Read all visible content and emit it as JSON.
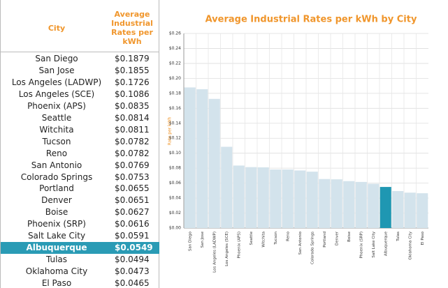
{
  "table": {
    "header": [
      "City",
      "Average Industrial Rates per kWh"
    ],
    "rows": [
      [
        "San Diego",
        "$0.1879"
      ],
      [
        "San Jose",
        "$0.1855"
      ],
      [
        "Los Angeles (LADWP)",
        "$0.1726"
      ],
      [
        "Los Angeles (SCE)",
        "$0.1086"
      ],
      [
        "Phoenix (APS)",
        "$0.0835"
      ],
      [
        "Seattle",
        "$0.0814"
      ],
      [
        "Witchita",
        "$0.0811"
      ],
      [
        "Tucson",
        "$0.0782"
      ],
      [
        "Reno",
        "$0.0782"
      ],
      [
        "San Antonio",
        "$0.0769"
      ],
      [
        "Colorado Springs",
        "$0.0753"
      ],
      [
        "Portland",
        "$0.0655"
      ],
      [
        "Denver",
        "$0.0651"
      ],
      [
        "Boise",
        "$0.0627"
      ],
      [
        "Phoenix (SRP)",
        "$0.0616"
      ],
      [
        "Salt Lake City",
        "$0.0591"
      ],
      [
        "Albuquerque",
        "$0.0549"
      ],
      [
        "Tulas",
        "$0.0494"
      ],
      [
        "Oklahoma City",
        "$0.0473"
      ],
      [
        "El Paso",
        "$0.0465"
      ]
    ],
    "highlighted_row": 16,
    "highlight_color": "#2a9bb5"
  },
  "chart_data": {
    "type": "bar",
    "title": "Average Industrial Rates per kWh by City",
    "y_label": "Rate per kWh",
    "categories": [
      "San Diego",
      "San Jose",
      "Los Angeles (LADWP)",
      "Los Angeles (SCE)",
      "Phoenix (APS)",
      "Seattle",
      "Witchita",
      "Tucson",
      "Reno",
      "San Antonio",
      "Colorado Springs",
      "Portland",
      "Denver",
      "Boise",
      "Phoenix (SRP)",
      "Salt Lake City",
      "Albuquerque",
      "Tulas",
      "Oklahoma City",
      "El Paso"
    ],
    "values": [
      0.1879,
      0.1855,
      0.1726,
      0.1086,
      0.0835,
      0.0814,
      0.0811,
      0.0782,
      0.0782,
      0.0769,
      0.0753,
      0.0655,
      0.0651,
      0.0627,
      0.0616,
      0.0591,
      0.0549,
      0.0494,
      0.0473,
      0.0465
    ],
    "colors": [
      "#d3e3ec",
      "#d3e3ec",
      "#d3e3ec",
      "#d3e3ec",
      "#d3e3ec",
      "#d3e3ec",
      "#d3e3ec",
      "#d3e3ec",
      "#d3e3ec",
      "#d3e3ec",
      "#d3e3ec",
      "#d3e3ec",
      "#d3e3ec",
      "#d3e3ec",
      "#d3e3ec",
      "#d3e3ec",
      "#1f97b2",
      "#d3e3ec",
      "#d3e3ec",
      "#d3e3ec"
    ],
    "ylim": [
      0,
      0.26
    ],
    "yticks": [
      {
        "value": 0,
        "label": "$0.00"
      },
      {
        "value": 0.02,
        "label": "$0.02"
      },
      {
        "value": 0.04,
        "label": "$0.04"
      },
      {
        "value": 0.06,
        "label": "$0.06"
      },
      {
        "value": 0.08,
        "label": "$0.08"
      },
      {
        "value": 0.1,
        "label": "$0.10"
      },
      {
        "value": 0.12,
        "label": "$0.12"
      },
      {
        "value": 0.14,
        "label": "$0.14"
      },
      {
        "value": 0.16,
        "label": "$0.16"
      },
      {
        "value": 0.18,
        "label": "$0.18"
      },
      {
        "value": 0.2,
        "label": "$0.20"
      },
      {
        "value": 0.22,
        "label": "$0.22"
      },
      {
        "value": 0.24,
        "label": "$0.24"
      },
      {
        "value": 0.26,
        "label": "$0.26"
      }
    ],
    "grid": true
  }
}
